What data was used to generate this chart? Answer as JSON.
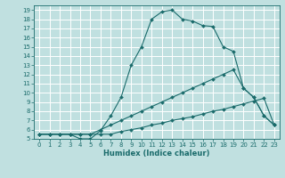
{
  "xlabel": "Humidex (Indice chaleur)",
  "bg_color": "#c0e0e0",
  "grid_color": "#ffffff",
  "line_color": "#1a6b6b",
  "xlim": [
    -0.5,
    23.5
  ],
  "ylim": [
    5,
    19.5
  ],
  "xticks": [
    0,
    1,
    2,
    3,
    4,
    5,
    6,
    7,
    8,
    9,
    10,
    11,
    12,
    13,
    14,
    15,
    16,
    17,
    18,
    19,
    20,
    21,
    22,
    23
  ],
  "yticks": [
    5,
    6,
    7,
    8,
    9,
    10,
    11,
    12,
    13,
    14,
    15,
    16,
    17,
    18,
    19
  ],
  "main_x": [
    0,
    1,
    2,
    3,
    4,
    5,
    6,
    7,
    8,
    9,
    10,
    11,
    12,
    13,
    14,
    15,
    16,
    17,
    18,
    19,
    20,
    21,
    22,
    23
  ],
  "main_y": [
    5.5,
    5.5,
    5.5,
    5.5,
    5.0,
    5.0,
    5.9,
    7.5,
    9.5,
    13.0,
    15.0,
    18.0,
    18.8,
    19.0,
    18.0,
    17.8,
    17.3,
    17.2,
    15.0,
    14.5,
    10.5,
    9.5,
    7.5,
    6.5
  ],
  "mid_x": [
    0,
    1,
    2,
    3,
    4,
    5,
    6,
    7,
    8,
    9,
    10,
    11,
    12,
    13,
    14,
    15,
    16,
    17,
    18,
    19,
    20,
    21,
    22,
    23
  ],
  "mid_y": [
    5.5,
    5.5,
    5.5,
    5.5,
    5.5,
    5.5,
    6.0,
    6.5,
    7.0,
    7.5,
    8.0,
    8.5,
    9.0,
    9.5,
    10.0,
    10.5,
    11.0,
    11.5,
    12.0,
    12.5,
    10.5,
    9.5,
    7.5,
    6.5
  ],
  "bot_x": [
    0,
    1,
    2,
    3,
    4,
    5,
    6,
    7,
    8,
    9,
    10,
    11,
    12,
    13,
    14,
    15,
    16,
    17,
    18,
    19,
    20,
    21,
    22,
    23
  ],
  "bot_y": [
    5.5,
    5.5,
    5.5,
    5.5,
    5.5,
    5.5,
    5.5,
    5.5,
    5.8,
    6.0,
    6.2,
    6.5,
    6.7,
    7.0,
    7.2,
    7.4,
    7.7,
    8.0,
    8.2,
    8.5,
    8.8,
    9.1,
    9.4,
    6.5
  ],
  "tick_fontsize": 5,
  "xlabel_fontsize": 6,
  "marker_size": 2.0,
  "line_width": 0.8
}
